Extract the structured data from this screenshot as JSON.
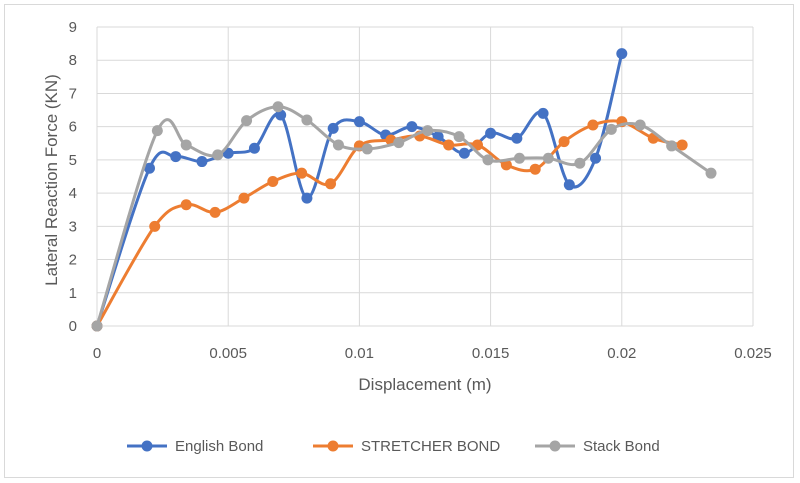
{
  "chart_data": {
    "type": "line",
    "xlabel": "Displacement (m)",
    "ylabel": "Lateral Reaction Force (KN)",
    "xlim": [
      0,
      0.025
    ],
    "ylim": [
      0,
      9
    ],
    "x_ticks": [
      0,
      0.005,
      0.01,
      0.015,
      0.02,
      0.025
    ],
    "x_tick_labels": [
      "0",
      "0.005",
      "0.01",
      "0.015",
      "0.02",
      "0.025"
    ],
    "y_ticks": [
      0,
      1,
      2,
      3,
      4,
      5,
      6,
      7,
      8,
      9
    ],
    "y_tick_labels": [
      "0",
      "1",
      "2",
      "3",
      "4",
      "5",
      "6",
      "7",
      "8",
      "9"
    ],
    "grid": "vertical and horizontal",
    "legend_position": "bottom",
    "series": [
      {
        "name": "English Bond",
        "color": "#4472c4",
        "points": [
          [
            0,
            0
          ],
          [
            0.002,
            4.75
          ],
          [
            0.003,
            5.1
          ],
          [
            0.004,
            4.95
          ],
          [
            0.005,
            5.2
          ],
          [
            0.006,
            5.35
          ],
          [
            0.007,
            6.35
          ],
          [
            0.008,
            3.85
          ],
          [
            0.009,
            5.95
          ],
          [
            0.01,
            6.15
          ],
          [
            0.011,
            5.75
          ],
          [
            0.012,
            6.0
          ],
          [
            0.013,
            5.7
          ],
          [
            0.014,
            5.2
          ],
          [
            0.015,
            5.8
          ],
          [
            0.016,
            5.65
          ],
          [
            0.017,
            6.4
          ],
          [
            0.018,
            4.25
          ],
          [
            0.019,
            5.05
          ],
          [
            0.02,
            8.2
          ]
        ]
      },
      {
        "name": "STRETCHER BOND",
        "color": "#ed7d31",
        "points": [
          [
            0,
            0
          ],
          [
            0.0022,
            3.0
          ],
          [
            0.0034,
            3.65
          ],
          [
            0.0045,
            3.42
          ],
          [
            0.0056,
            3.85
          ],
          [
            0.0067,
            4.35
          ],
          [
            0.0078,
            4.6
          ],
          [
            0.0089,
            4.28
          ],
          [
            0.01,
            5.42
          ],
          [
            0.0112,
            5.6
          ],
          [
            0.0123,
            5.72
          ],
          [
            0.0134,
            5.45
          ],
          [
            0.0145,
            5.45
          ],
          [
            0.0156,
            4.85
          ],
          [
            0.0167,
            4.72
          ],
          [
            0.0178,
            5.55
          ],
          [
            0.0189,
            6.05
          ],
          [
            0.02,
            6.15
          ],
          [
            0.0212,
            5.65
          ],
          [
            0.0223,
            5.45
          ]
        ]
      },
      {
        "name": "Stack Bond",
        "color": "#a5a5a5",
        "points": [
          [
            0,
            0
          ],
          [
            0.0023,
            5.88
          ],
          [
            0.0034,
            5.45
          ],
          [
            0.0046,
            5.15
          ],
          [
            0.0057,
            6.18
          ],
          [
            0.0069,
            6.6
          ],
          [
            0.008,
            6.2
          ],
          [
            0.0092,
            5.45
          ],
          [
            0.0103,
            5.33
          ],
          [
            0.0115,
            5.52
          ],
          [
            0.0126,
            5.88
          ],
          [
            0.0138,
            5.7
          ],
          [
            0.0149,
            5.0
          ],
          [
            0.0161,
            5.05
          ],
          [
            0.0172,
            5.05
          ],
          [
            0.0184,
            4.9
          ],
          [
            0.0196,
            5.92
          ],
          [
            0.0207,
            6.05
          ],
          [
            0.0219,
            5.42
          ],
          [
            0.0234,
            4.6
          ]
        ]
      }
    ]
  }
}
